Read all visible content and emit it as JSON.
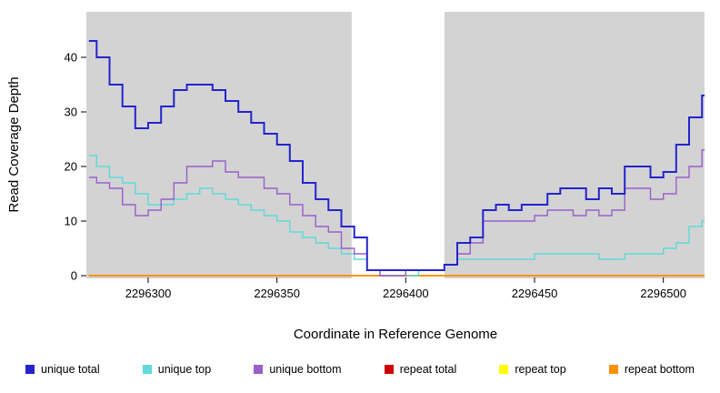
{
  "chart_data": {
    "type": "line",
    "subtype": "step",
    "title": "",
    "xlabel": "Coordinate in Reference Genome",
    "ylabel": "Read Coverage Depth",
    "xlim": [
      2296276,
      2296516
    ],
    "ylim": [
      0,
      48
    ],
    "x_ticks": [
      2296300,
      2296350,
      2296400,
      2296450,
      2296500
    ],
    "y_ticks": [
      0,
      10,
      20,
      30,
      40
    ],
    "plot_bg": "#d3d3d3",
    "white_band": [
      2296379,
      2296415
    ],
    "grid": false,
    "legend_position": "bottom",
    "x": [
      2296277,
      2296280,
      2296285,
      2296290,
      2296295,
      2296300,
      2296305,
      2296310,
      2296315,
      2296320,
      2296325,
      2296330,
      2296335,
      2296340,
      2296345,
      2296350,
      2296355,
      2296360,
      2296365,
      2296370,
      2296375,
      2296380,
      2296385,
      2296390,
      2296395,
      2296400,
      2296405,
      2296410,
      2296415,
      2296420,
      2296425,
      2296430,
      2296435,
      2296440,
      2296445,
      2296450,
      2296455,
      2296460,
      2296465,
      2296470,
      2296475,
      2296480,
      2296485,
      2296490,
      2296495,
      2296500,
      2296505,
      2296510,
      2296515
    ],
    "series": [
      {
        "name": "unique total",
        "color": "#2424cd",
        "width": 2,
        "values": [
          43,
          40,
          35,
          31,
          27,
          28,
          31,
          34,
          35,
          35,
          34,
          32,
          30,
          28,
          26,
          24,
          21,
          17,
          14,
          12,
          9,
          7,
          1,
          1,
          1,
          1,
          1,
          1,
          2,
          6,
          7,
          12,
          13,
          12,
          13,
          13,
          15,
          16,
          16,
          14,
          16,
          15,
          20,
          20,
          18,
          19,
          24,
          29,
          33
        ]
      },
      {
        "name": "unique top",
        "color": "#5fd9d9",
        "width": 1.4,
        "values": [
          22,
          20,
          18,
          17,
          15,
          13,
          13,
          14,
          15,
          16,
          15,
          14,
          13,
          12,
          11,
          10,
          8,
          7,
          6,
          5,
          4,
          3,
          1,
          0,
          0,
          0,
          1,
          1,
          2,
          3,
          3,
          3,
          3,
          3,
          3,
          4,
          4,
          4,
          4,
          4,
          3,
          3,
          4,
          4,
          4,
          5,
          6,
          9,
          10
        ]
      },
      {
        "name": "unique bottom",
        "color": "#9a5fc9",
        "width": 1.4,
        "values": [
          18,
          17,
          16,
          13,
          11,
          12,
          14,
          17,
          20,
          20,
          21,
          19,
          18,
          18,
          16,
          15,
          13,
          11,
          9,
          8,
          5,
          4,
          1,
          0,
          0,
          1,
          1,
          1,
          2,
          4,
          6,
          10,
          10,
          10,
          10,
          11,
          12,
          12,
          11,
          12,
          11,
          12,
          16,
          16,
          14,
          15,
          18,
          20,
          23
        ]
      },
      {
        "name": "repeat total",
        "color": "#cc0000",
        "width": 1.4,
        "constant": 0
      },
      {
        "name": "repeat top",
        "color": "#ffff00",
        "width": 1.4,
        "constant": 0
      },
      {
        "name": "repeat bottom",
        "color": "#ff9100",
        "width": 2,
        "constant": 0
      }
    ]
  },
  "legend": {
    "items": [
      {
        "label": "unique total",
        "color": "#2424cd"
      },
      {
        "label": "unique top",
        "color": "#5fd9d9"
      },
      {
        "label": "unique bottom",
        "color": "#9a5fc9"
      },
      {
        "label": "repeat total",
        "color": "#cc0000"
      },
      {
        "label": "repeat top",
        "color": "#ffff00"
      },
      {
        "label": "repeat bottom",
        "color": "#ff9100"
      }
    ]
  }
}
